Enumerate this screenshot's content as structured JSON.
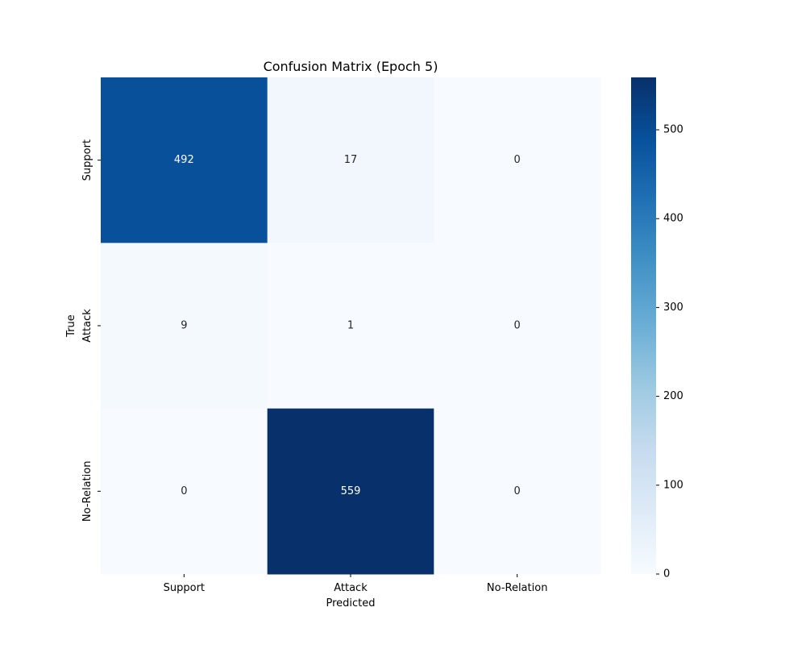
{
  "chart_data": {
    "type": "heatmap",
    "title": "Confusion Matrix (Epoch 5)",
    "xlabel": "Predicted",
    "ylabel": "True",
    "x_categories": [
      "Support",
      "Attack",
      "No-Relation"
    ],
    "y_categories": [
      "Support",
      "Attack",
      "No-Relation"
    ],
    "values": [
      [
        492,
        17,
        0
      ],
      [
        9,
        1,
        0
      ],
      [
        0,
        559,
        0
      ]
    ],
    "colormap": "Blues",
    "colorbar": {
      "range": [
        0,
        559
      ],
      "ticks": [
        0,
        100,
        200,
        300,
        400,
        500
      ]
    },
    "grid": false
  }
}
